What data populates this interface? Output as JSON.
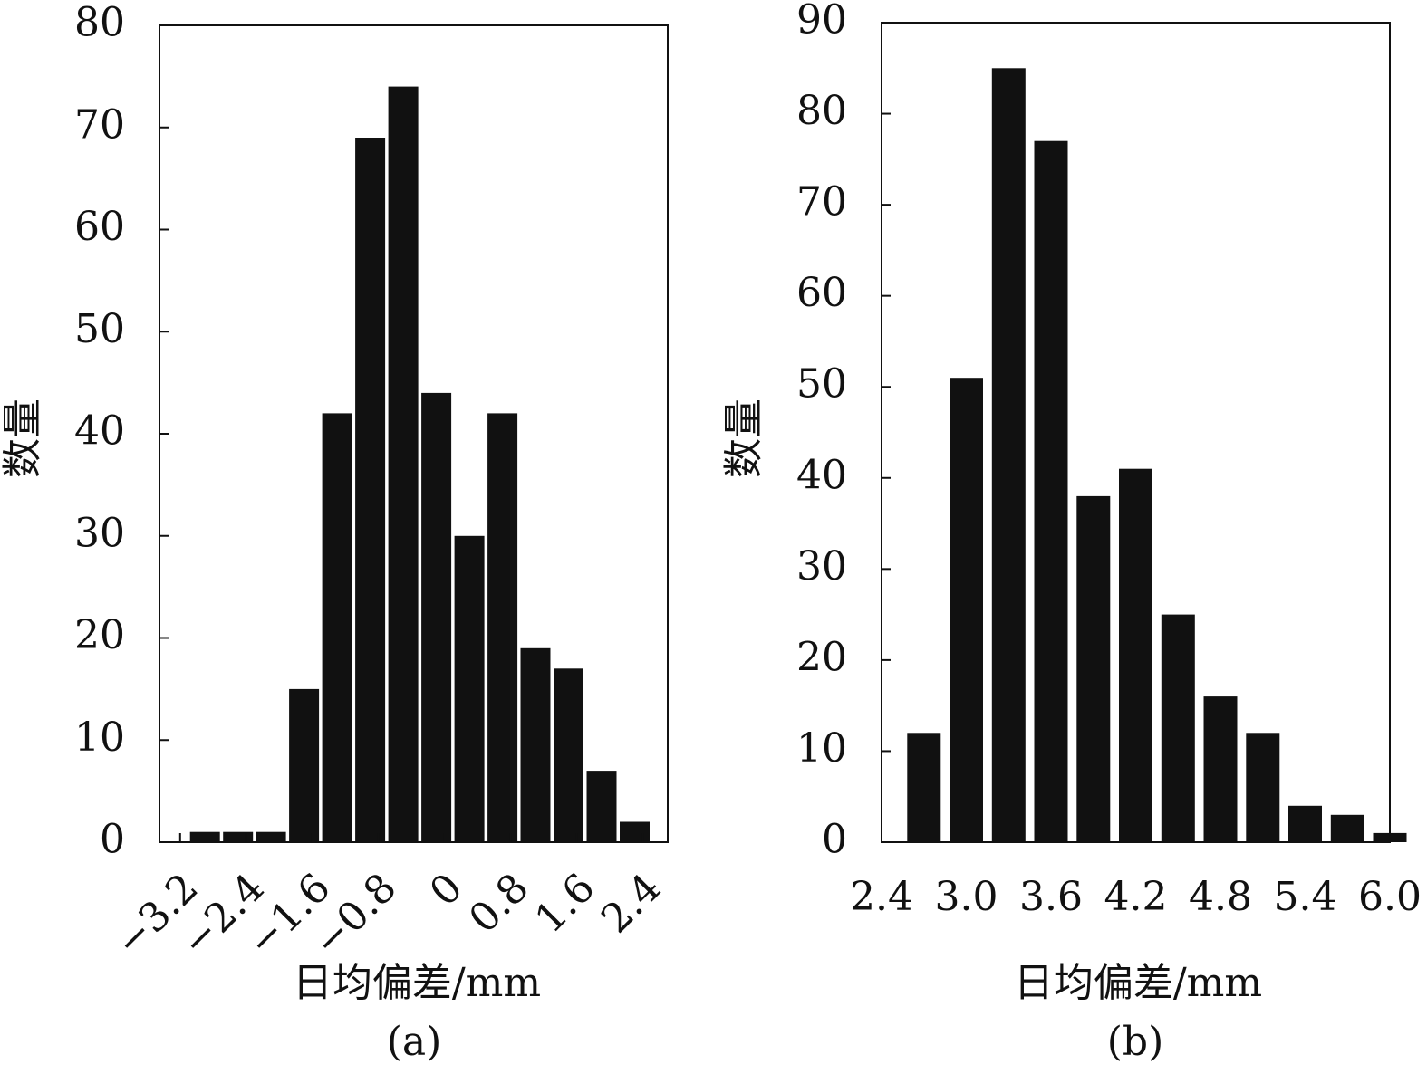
{
  "chart_data": [
    {
      "type": "bar",
      "panel_label": "(a)",
      "xlabel": "日均偏差/mm",
      "ylabel": "数量",
      "ylim": [
        0,
        80
      ],
      "yticks": [
        0,
        10,
        20,
        30,
        40,
        50,
        60,
        70,
        80
      ],
      "xlim": [
        -3.45,
        2.7
      ],
      "xticks": [
        -3.2,
        -2.4,
        -1.6,
        -0.8,
        0,
        0.8,
        1.6,
        2.4
      ],
      "xtick_labels": [
        "−3.2",
        "−2.4",
        "−1.6",
        "−0.8",
        "0",
        "0.8",
        "1.6",
        "2.4"
      ],
      "xtick_rotation": -45,
      "bin_width": 0.4,
      "bars": [
        {
          "x": -2.9,
          "value": 1
        },
        {
          "x": -2.5,
          "value": 1
        },
        {
          "x": -2.1,
          "value": 1
        },
        {
          "x": -1.7,
          "value": 15
        },
        {
          "x": -1.3,
          "value": 42
        },
        {
          "x": -0.9,
          "value": 69
        },
        {
          "x": -0.5,
          "value": 74
        },
        {
          "x": -0.1,
          "value": 44
        },
        {
          "x": 0.3,
          "value": 30
        },
        {
          "x": 0.7,
          "value": 42
        },
        {
          "x": 1.1,
          "value": 19
        },
        {
          "x": 1.5,
          "value": 17
        },
        {
          "x": 1.9,
          "value": 7
        },
        {
          "x": 2.3,
          "value": 2
        }
      ],
      "grid": false
    },
    {
      "type": "bar",
      "panel_label": "(b)",
      "xlabel": "日均偏差/mm",
      "ylabel": "数量",
      "ylim": [
        0,
        90
      ],
      "yticks": [
        0,
        10,
        20,
        30,
        40,
        50,
        60,
        70,
        80,
        90
      ],
      "xlim": [
        2.4,
        6.0
      ],
      "xticks": [
        2.4,
        3.0,
        3.6,
        4.2,
        4.8,
        5.4,
        6.0
      ],
      "xtick_labels": [
        "2.4",
        "3.0",
        "3.6",
        "4.2",
        "4.8",
        "5.4",
        "6.0"
      ],
      "xtick_rotation": 0,
      "bin_width": 0.3,
      "bars": [
        {
          "x": 2.7,
          "value": 12
        },
        {
          "x": 3.0,
          "value": 51
        },
        {
          "x": 3.3,
          "value": 85
        },
        {
          "x": 3.6,
          "value": 77
        },
        {
          "x": 3.9,
          "value": 38
        },
        {
          "x": 4.2,
          "value": 41
        },
        {
          "x": 4.5,
          "value": 25
        },
        {
          "x": 4.8,
          "value": 16
        },
        {
          "x": 5.1,
          "value": 12
        },
        {
          "x": 5.4,
          "value": 4
        },
        {
          "x": 5.7,
          "value": 3
        },
        {
          "x": 6.0,
          "value": 1
        }
      ],
      "grid": false
    }
  ]
}
